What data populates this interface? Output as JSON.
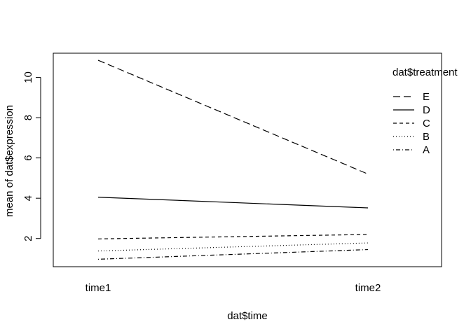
{
  "chart_data": {
    "type": "line",
    "title": "",
    "xlabel": "dat$time",
    "ylabel": "mean of  dat$expression",
    "categories": [
      "time1",
      "time2"
    ],
    "ylim": [
      0.6,
      11.2
    ],
    "yticks": [
      2,
      4,
      6,
      8,
      10
    ],
    "grid": false,
    "legend_title": "dat$treatment",
    "legend_position": "top-right",
    "series": [
      {
        "name": "E",
        "values": [
          10.85,
          5.2
        ],
        "line_style": "longdash",
        "color": "#000000"
      },
      {
        "name": "D",
        "values": [
          4.05,
          3.52
        ],
        "line_style": "solid",
        "color": "#000000"
      },
      {
        "name": "C",
        "values": [
          1.98,
          2.2
        ],
        "line_style": "dashed",
        "color": "#000000"
      },
      {
        "name": "B",
        "values": [
          1.38,
          1.78
        ],
        "line_style": "dotted",
        "color": "#000000"
      },
      {
        "name": "A",
        "values": [
          0.97,
          1.45
        ],
        "line_style": "dotdash",
        "color": "#000000"
      }
    ]
  }
}
